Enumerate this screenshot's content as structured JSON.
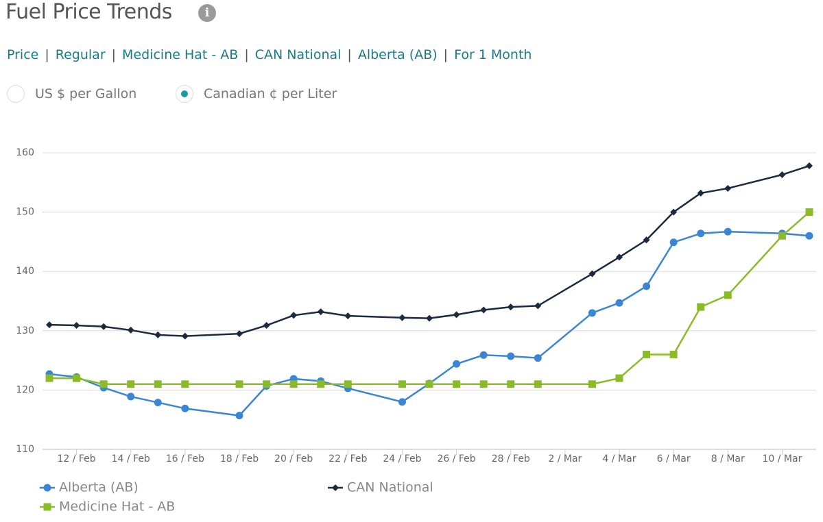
{
  "header": {
    "title": "Fuel Price Trends",
    "breadcrumb": [
      "Price",
      "Regular",
      "Medicine Hat - AB",
      "CAN National",
      "Alberta (AB)",
      "For 1 Month"
    ]
  },
  "units": {
    "options": [
      "US $ per Gallon",
      "Canadian ¢ per Liter"
    ],
    "selected": 1
  },
  "chart_data": {
    "type": "line",
    "categories": [
      null,
      "12 / Feb",
      null,
      "14 / Feb",
      null,
      "16 / Feb",
      null,
      "18 / Feb",
      null,
      "20 / Feb",
      null,
      "22 / Feb",
      null,
      "24 / Feb",
      null,
      "26 / Feb",
      null,
      "28 / Feb",
      null,
      "2 / Mar",
      null,
      "4 / Mar",
      null,
      "6 / Mar",
      null,
      "8 / Mar",
      null,
      "10 / Mar",
      null
    ],
    "series": [
      {
        "name": "Alberta (AB)",
        "color": "#3a86d4",
        "marker": "circle",
        "values": [
          122.7,
          122.2,
          120.4,
          118.9,
          117.9,
          116.9,
          null,
          115.7,
          120.7,
          121.9,
          121.5,
          120.3,
          null,
          118.0,
          121.1,
          124.4,
          125.9,
          125.7,
          125.4,
          null,
          133.0,
          134.7,
          137.5,
          144.9,
          146.4,
          146.7,
          null,
          146.4,
          146.0
        ]
      },
      {
        "name": "CAN National",
        "color": "#1b2a3f",
        "marker": "diamond",
        "values": [
          131.0,
          130.9,
          130.7,
          130.1,
          129.3,
          129.1,
          null,
          129.5,
          130.9,
          132.6,
          133.2,
          132.5,
          null,
          132.2,
          132.1,
          132.7,
          133.5,
          134.0,
          134.2,
          null,
          139.6,
          142.4,
          145.3,
          150.0,
          153.2,
          154.0,
          null,
          156.3,
          157.8
        ]
      },
      {
        "name": "Medicine Hat - AB",
        "color": "#8bbb26",
        "marker": "square",
        "values": [
          122,
          122,
          121,
          121,
          121,
          121,
          null,
          121,
          121,
          121,
          121,
          121,
          null,
          121,
          121,
          121,
          121,
          121,
          121,
          null,
          121,
          122,
          126,
          126,
          134,
          136,
          null,
          146,
          150
        ]
      }
    ],
    "ylim": [
      110,
      160
    ],
    "yticks": [
      110,
      120,
      130,
      140,
      150,
      160
    ],
    "grid": true,
    "legend": "bottom"
  }
}
